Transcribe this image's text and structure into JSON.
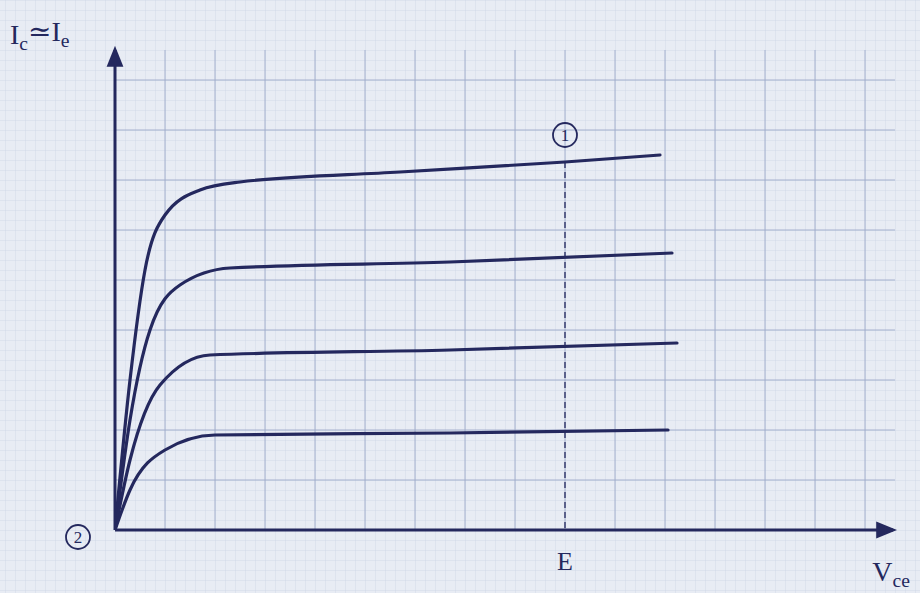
{
  "chart_data": {
    "type": "line",
    "x_label": "Vce",
    "y_label": "Ic≃Ie",
    "xlim": [
      0,
      78
    ],
    "ylim": [
      0,
      48
    ],
    "xticks": [
      0,
      5,
      10,
      15,
      20,
      25,
      30,
      35,
      40,
      45,
      50,
      55,
      60,
      65,
      70,
      75
    ],
    "yticks": [
      0,
      5,
      10,
      15,
      20,
      25,
      30,
      35,
      40,
      45
    ],
    "grid": true,
    "tick_labels": false,
    "color": "#24285e",
    "series": [
      {
        "x": [
          0,
          1.5,
          3,
          5,
          8.5,
          12.5,
          28.5,
          45,
          54.5
        ],
        "values": [
          0,
          15,
          26,
          31.5,
          34,
          34.8,
          35.8,
          36.8,
          37.5
        ]
      },
      {
        "x": [
          0,
          1.5,
          3.5,
          6.5,
          11.5,
          33.5,
          55.7
        ],
        "values": [
          0,
          11,
          20,
          24.5,
          26.2,
          26.8,
          27.7
        ]
      },
      {
        "x": [
          0,
          1.5,
          4.5,
          9.5,
          33.5,
          56.2
        ],
        "values": [
          0,
          7,
          14.5,
          17.5,
          18,
          18.7
        ]
      },
      {
        "x": [
          0,
          1.5,
          5,
          10,
          33.5,
          55.3
        ],
        "values": [
          0,
          4,
          8,
          9.5,
          9.7,
          10
        ]
      }
    ],
    "reference_line": {
      "x": 45,
      "y": 36.8,
      "label": "E",
      "line_style": "dashed"
    },
    "annotations": [
      {
        "text": "1",
        "x": 45,
        "y": 39.5
      },
      {
        "text": "2",
        "x": -3.7,
        "y": -0.7
      }
    ]
  }
}
